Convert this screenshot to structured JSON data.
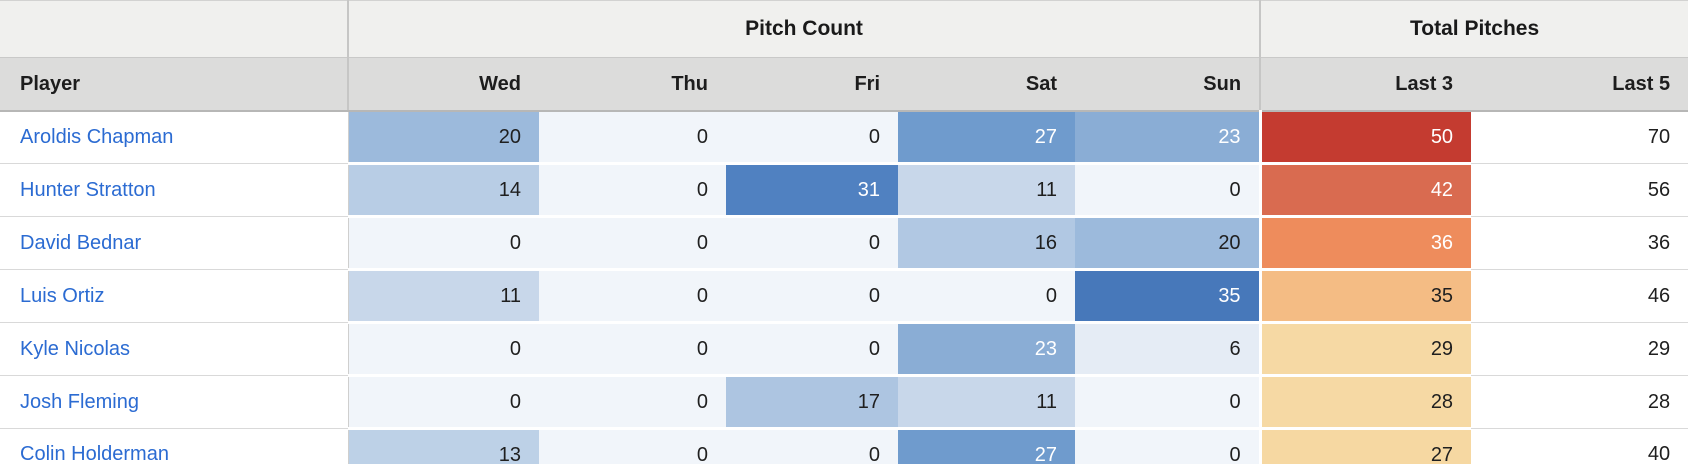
{
  "table": {
    "group_headers": [
      {
        "label": "",
        "span": 1
      },
      {
        "label": "Pitch Count",
        "span": 5
      },
      {
        "label": "Total Pitches",
        "span": 2
      }
    ],
    "columns": [
      "Player",
      "Wed",
      "Thu",
      "Fri",
      "Sat",
      "Sun",
      "Last 3",
      "Last 5"
    ],
    "rows": [
      {
        "player": "Aroldis Chapman",
        "cells": [
          {
            "value": 20,
            "bg": "#9cbadc",
            "fg": "#1f1f1f"
          },
          {
            "value": 0,
            "bg": "#f1f5fa",
            "fg": "#1f1f1f"
          },
          {
            "value": 0,
            "bg": "#f1f5fa",
            "fg": "#1f1f1f"
          },
          {
            "value": 27,
            "bg": "#6f9bcd",
            "fg": "#ffffff"
          },
          {
            "value": 23,
            "bg": "#8aadd5",
            "fg": "#ffffff"
          },
          {
            "value": 50,
            "bg": "#c43b30",
            "fg": "#ffffff"
          },
          {
            "value": 70,
            "bg": "#ffffff",
            "fg": "#1f1f1f"
          }
        ]
      },
      {
        "player": "Hunter Stratton",
        "cells": [
          {
            "value": 14,
            "bg": "#b8cde5",
            "fg": "#1f1f1f"
          },
          {
            "value": 0,
            "bg": "#f1f5fa",
            "fg": "#1f1f1f"
          },
          {
            "value": 31,
            "bg": "#5081c1",
            "fg": "#ffffff"
          },
          {
            "value": 11,
            "bg": "#c8d7ea",
            "fg": "#1f1f1f"
          },
          {
            "value": 0,
            "bg": "#f1f5fa",
            "fg": "#1f1f1f"
          },
          {
            "value": 42,
            "bg": "#d96b50",
            "fg": "#ffffff"
          },
          {
            "value": 56,
            "bg": "#ffffff",
            "fg": "#1f1f1f"
          }
        ]
      },
      {
        "player": "David Bednar",
        "cells": [
          {
            "value": 0,
            "bg": "#f1f5fa",
            "fg": "#1f1f1f"
          },
          {
            "value": 0,
            "bg": "#f1f5fa",
            "fg": "#1f1f1f"
          },
          {
            "value": 0,
            "bg": "#f1f5fa",
            "fg": "#1f1f1f"
          },
          {
            "value": 16,
            "bg": "#b1c8e3",
            "fg": "#1f1f1f"
          },
          {
            "value": 20,
            "bg": "#9cbadc",
            "fg": "#1f1f1f"
          },
          {
            "value": 36,
            "bg": "#ee8c5c",
            "fg": "#ffffff"
          },
          {
            "value": 36,
            "bg": "#ffffff",
            "fg": "#1f1f1f"
          }
        ]
      },
      {
        "player": "Luis Ortiz",
        "cells": [
          {
            "value": 11,
            "bg": "#c8d7ea",
            "fg": "#1f1f1f"
          },
          {
            "value": 0,
            "bg": "#f1f5fa",
            "fg": "#1f1f1f"
          },
          {
            "value": 0,
            "bg": "#f1f5fa",
            "fg": "#1f1f1f"
          },
          {
            "value": 0,
            "bg": "#f1f5fa",
            "fg": "#1f1f1f"
          },
          {
            "value": 35,
            "bg": "#4778ba",
            "fg": "#ffffff"
          },
          {
            "value": 35,
            "bg": "#f4bc84",
            "fg": "#1f1f1f"
          },
          {
            "value": 46,
            "bg": "#ffffff",
            "fg": "#1f1f1f"
          }
        ]
      },
      {
        "player": "Kyle Nicolas",
        "cells": [
          {
            "value": 0,
            "bg": "#f1f5fa",
            "fg": "#1f1f1f"
          },
          {
            "value": 0,
            "bg": "#f1f5fa",
            "fg": "#1f1f1f"
          },
          {
            "value": 0,
            "bg": "#f1f5fa",
            "fg": "#1f1f1f"
          },
          {
            "value": 23,
            "bg": "#8aadd5",
            "fg": "#ffffff"
          },
          {
            "value": 6,
            "bg": "#e5ecf5",
            "fg": "#1f1f1f"
          },
          {
            "value": 29,
            "bg": "#f6d9a4",
            "fg": "#1f1f1f"
          },
          {
            "value": 29,
            "bg": "#ffffff",
            "fg": "#1f1f1f"
          }
        ]
      },
      {
        "player": "Josh Fleming",
        "cells": [
          {
            "value": 0,
            "bg": "#f1f5fa",
            "fg": "#1f1f1f"
          },
          {
            "value": 0,
            "bg": "#f1f5fa",
            "fg": "#1f1f1f"
          },
          {
            "value": 17,
            "bg": "#adc5e1",
            "fg": "#1f1f1f"
          },
          {
            "value": 11,
            "bg": "#c8d7ea",
            "fg": "#1f1f1f"
          },
          {
            "value": 0,
            "bg": "#f1f5fa",
            "fg": "#1f1f1f"
          },
          {
            "value": 28,
            "bg": "#f6d9a4",
            "fg": "#1f1f1f"
          },
          {
            "value": 28,
            "bg": "#ffffff",
            "fg": "#1f1f1f"
          }
        ]
      },
      {
        "player": "Colin Holderman",
        "cells": [
          {
            "value": 13,
            "bg": "#bdd1e7",
            "fg": "#1f1f1f"
          },
          {
            "value": 0,
            "bg": "#f1f5fa",
            "fg": "#1f1f1f"
          },
          {
            "value": 0,
            "bg": "#f1f5fa",
            "fg": "#1f1f1f"
          },
          {
            "value": 27,
            "bg": "#6f9bcd",
            "fg": "#ffffff"
          },
          {
            "value": 0,
            "bg": "#f1f5fa",
            "fg": "#1f1f1f"
          },
          {
            "value": 27,
            "bg": "#f6d8a2",
            "fg": "#1f1f1f"
          },
          {
            "value": 40,
            "bg": "#ffffff",
            "fg": "#1f1f1f"
          }
        ]
      }
    ]
  },
  "colors": {
    "group_header_bg": "#f0f0ee",
    "column_header_bg": "#dcdcdb",
    "player_link": "#2b6bd2",
    "outer_border": "#c6c6c5",
    "row_border": "#d9d9d9",
    "text": "#1f1f1f",
    "text_inverse": "#ffffff",
    "heat_blue_min": "#f1f5fa",
    "heat_blue_max": "#4778ba",
    "heat_warm_min": "#f6d8a2",
    "heat_warm_max": "#c43b30"
  }
}
